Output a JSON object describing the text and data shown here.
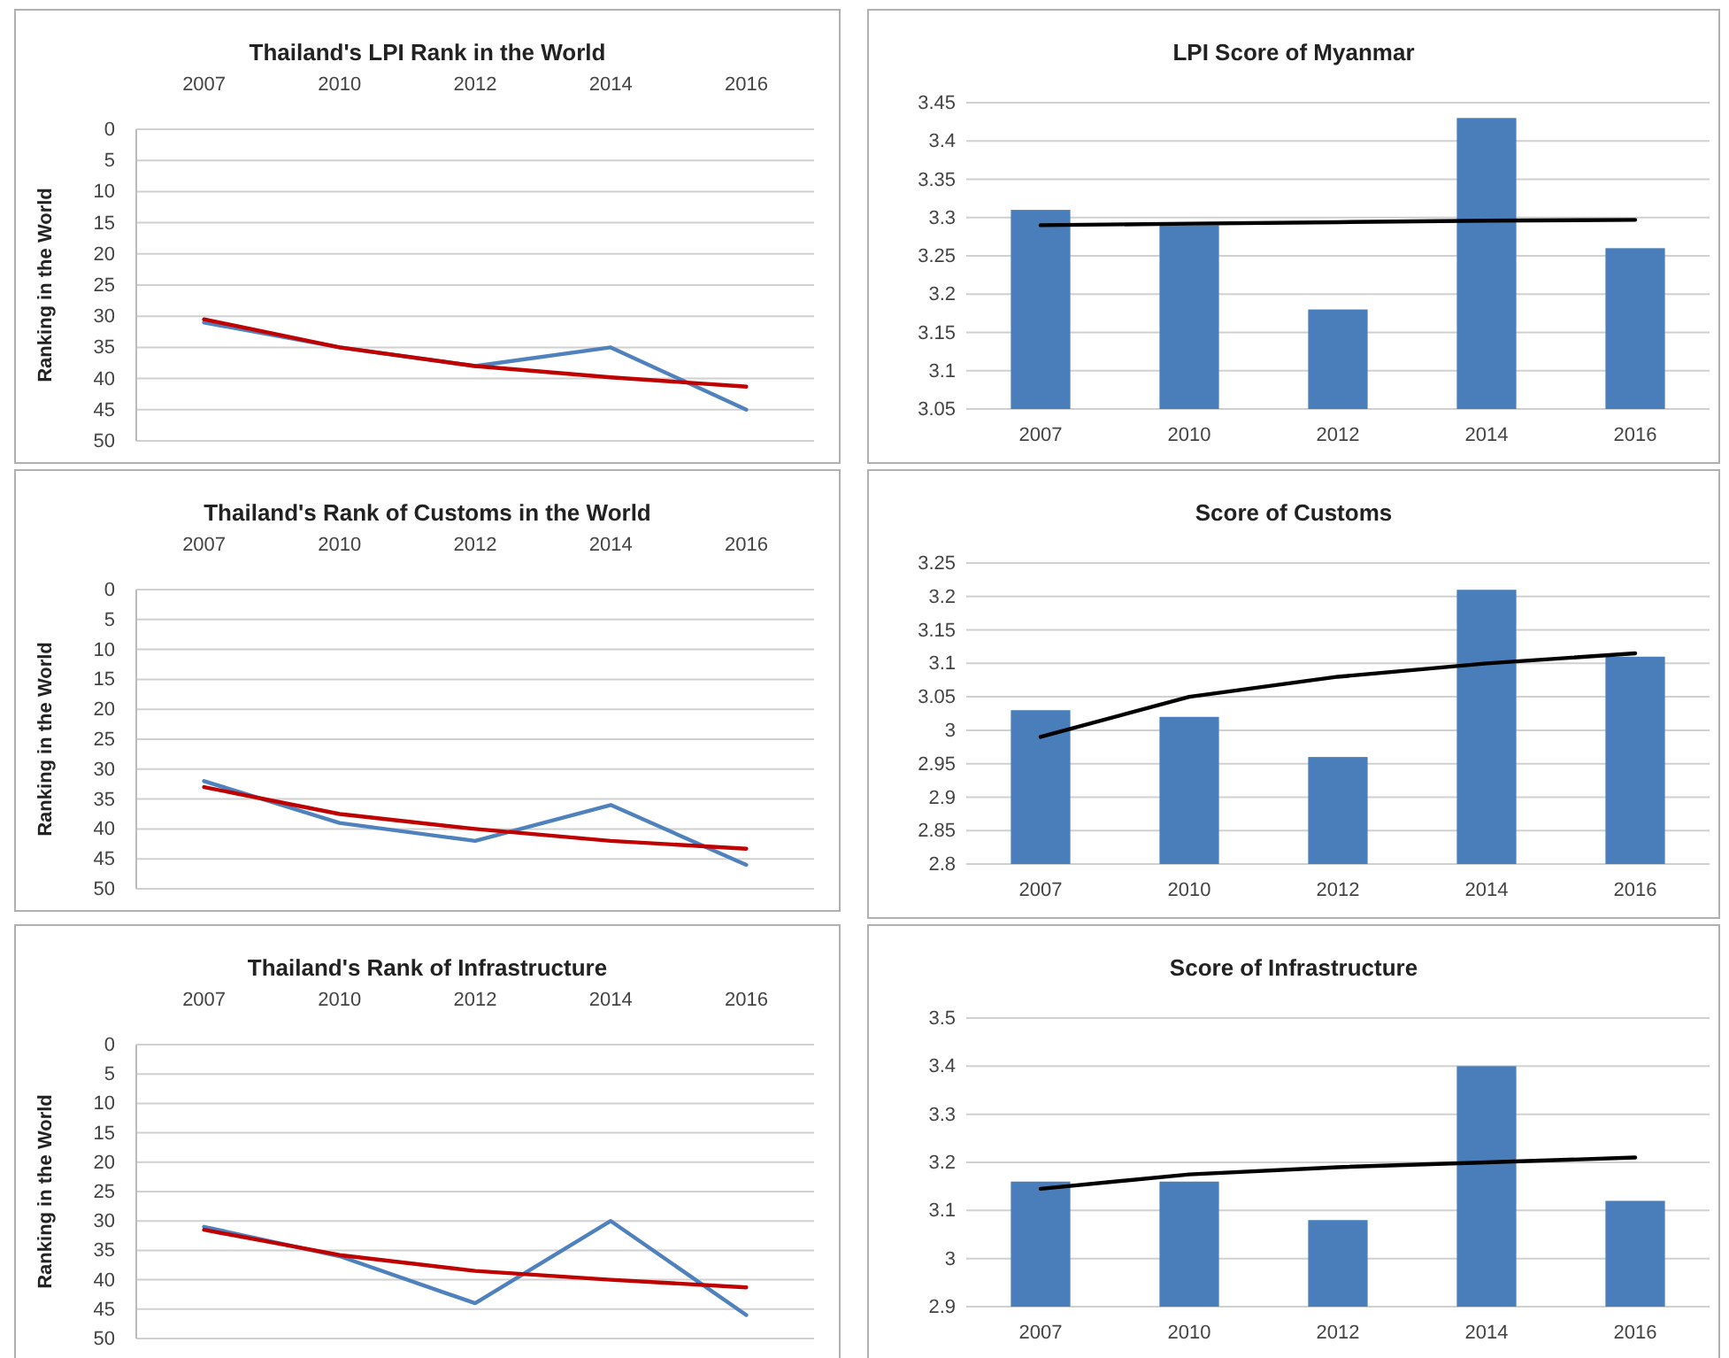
{
  "chart_data": [
    {
      "type": "line",
      "title": "Thailand's LPI Rank in the World",
      "ylabel": "Ranking in the World",
      "categories": [
        "2007",
        "2010",
        "2012",
        "2014",
        "2016"
      ],
      "ylim": [
        50,
        0
      ],
      "yticks": [
        0,
        5,
        10,
        15,
        20,
        25,
        30,
        35,
        40,
        45,
        50
      ],
      "grid": "y",
      "series": [
        {
          "color": "#4f81bd",
          "values": [
            31,
            35,
            38,
            35,
            45
          ]
        },
        {
          "color": "#c00000",
          "values": [
            30.5,
            35,
            38,
            39.8,
            41.3
          ]
        }
      ]
    },
    {
      "type": "bar",
      "title": "LPI Score of Myanmar",
      "categories": [
        "2007",
        "2010",
        "2012",
        "2014",
        "2016"
      ],
      "ylim": [
        3.05,
        3.45
      ],
      "yticks": [
        3.05,
        3.1,
        3.15,
        3.2,
        3.25,
        3.3,
        3.35,
        3.4,
        3.45
      ],
      "grid": "y",
      "series": [
        {
          "color": "#4a7ebb",
          "values": [
            3.31,
            3.29,
            3.18,
            3.43,
            3.26
          ]
        },
        {
          "type": "line",
          "color": "#000000",
          "values": [
            3.29,
            3.292,
            3.294,
            3.296,
            3.297
          ]
        }
      ]
    },
    {
      "type": "line",
      "title": "Thailand's Rank of Customs in the World",
      "ylabel": "Ranking in the World",
      "categories": [
        "2007",
        "2010",
        "2012",
        "2014",
        "2016"
      ],
      "ylim": [
        50,
        0
      ],
      "yticks": [
        0,
        5,
        10,
        15,
        20,
        25,
        30,
        35,
        40,
        45,
        50
      ],
      "grid": "y",
      "series": [
        {
          "color": "#4f81bd",
          "values": [
            32,
            39,
            42,
            36,
            46
          ]
        },
        {
          "color": "#c00000",
          "values": [
            33,
            37.5,
            40,
            42,
            43.3
          ]
        }
      ]
    },
    {
      "type": "bar",
      "title": "Score of Customs",
      "categories": [
        "2007",
        "2010",
        "2012",
        "2014",
        "2016"
      ],
      "ylim": [
        2.8,
        3.25
      ],
      "yticks": [
        2.8,
        2.85,
        2.9,
        2.95,
        3,
        3.05,
        3.1,
        3.15,
        3.2,
        3.25
      ],
      "grid": "y",
      "series": [
        {
          "color": "#4a7ebb",
          "values": [
            3.03,
            3.02,
            2.96,
            3.21,
            3.11
          ]
        },
        {
          "type": "line",
          "color": "#000000",
          "values": [
            2.99,
            3.05,
            3.08,
            3.1,
            3.115
          ]
        }
      ]
    },
    {
      "type": "line",
      "title": "Thailand's Rank of Infrastructure",
      "ylabel": "Ranking in the World",
      "categories": [
        "2007",
        "2010",
        "2012",
        "2014",
        "2016"
      ],
      "ylim": [
        50,
        0
      ],
      "yticks": [
        0,
        5,
        10,
        15,
        20,
        25,
        30,
        35,
        40,
        45,
        50
      ],
      "grid": "y",
      "series": [
        {
          "color": "#4f81bd",
          "values": [
            31,
            36,
            44,
            30,
            46
          ]
        },
        {
          "color": "#c00000",
          "values": [
            31.5,
            35.8,
            38.5,
            40,
            41.3
          ]
        }
      ]
    },
    {
      "type": "bar",
      "title": "Score of Infrastructure",
      "categories": [
        "2007",
        "2010",
        "2012",
        "2014",
        "2016"
      ],
      "ylim": [
        2.9,
        3.5
      ],
      "yticks": [
        2.9,
        3,
        3.1,
        3.2,
        3.3,
        3.4,
        3.5
      ],
      "grid": "y",
      "series": [
        {
          "color": "#4a7ebb",
          "values": [
            3.16,
            3.16,
            3.08,
            3.4,
            3.12
          ]
        },
        {
          "type": "line",
          "color": "#000000",
          "values": [
            3.145,
            3.175,
            3.19,
            3.2,
            3.21
          ]
        }
      ]
    }
  ]
}
